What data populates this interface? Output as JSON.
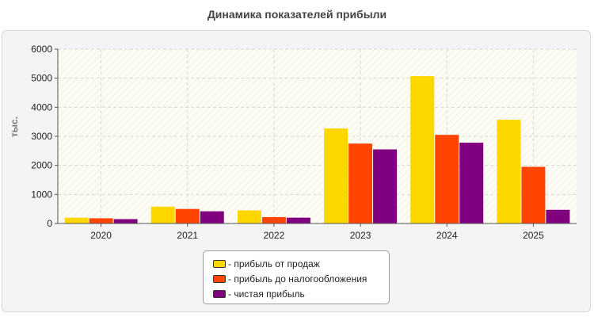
{
  "chart_data": {
    "type": "bar",
    "title": "Динамика показателей прибыли",
    "ylabel": "тыс.",
    "xlabel": "",
    "ylim": [
      0,
      6000
    ],
    "yticks": [
      0,
      1000,
      2000,
      3000,
      4000,
      5000,
      6000
    ],
    "grid": true,
    "legend_position": "bottom",
    "categories": [
      "2020",
      "2021",
      "2022",
      "2023",
      "2024",
      "2025"
    ],
    "series": [
      {
        "name": "- прибыль от продаж",
        "color": "#FFD700",
        "values": [
          200,
          580,
          450,
          3270,
          5070,
          3570
        ]
      },
      {
        "name": "- прибыль до налогообложения",
        "color": "#FF4500",
        "values": [
          180,
          500,
          220,
          2750,
          3050,
          1950
        ]
      },
      {
        "name": "- чистая прибыль",
        "color": "#800080",
        "values": [
          150,
          420,
          200,
          2550,
          2780,
          470
        ]
      }
    ]
  }
}
